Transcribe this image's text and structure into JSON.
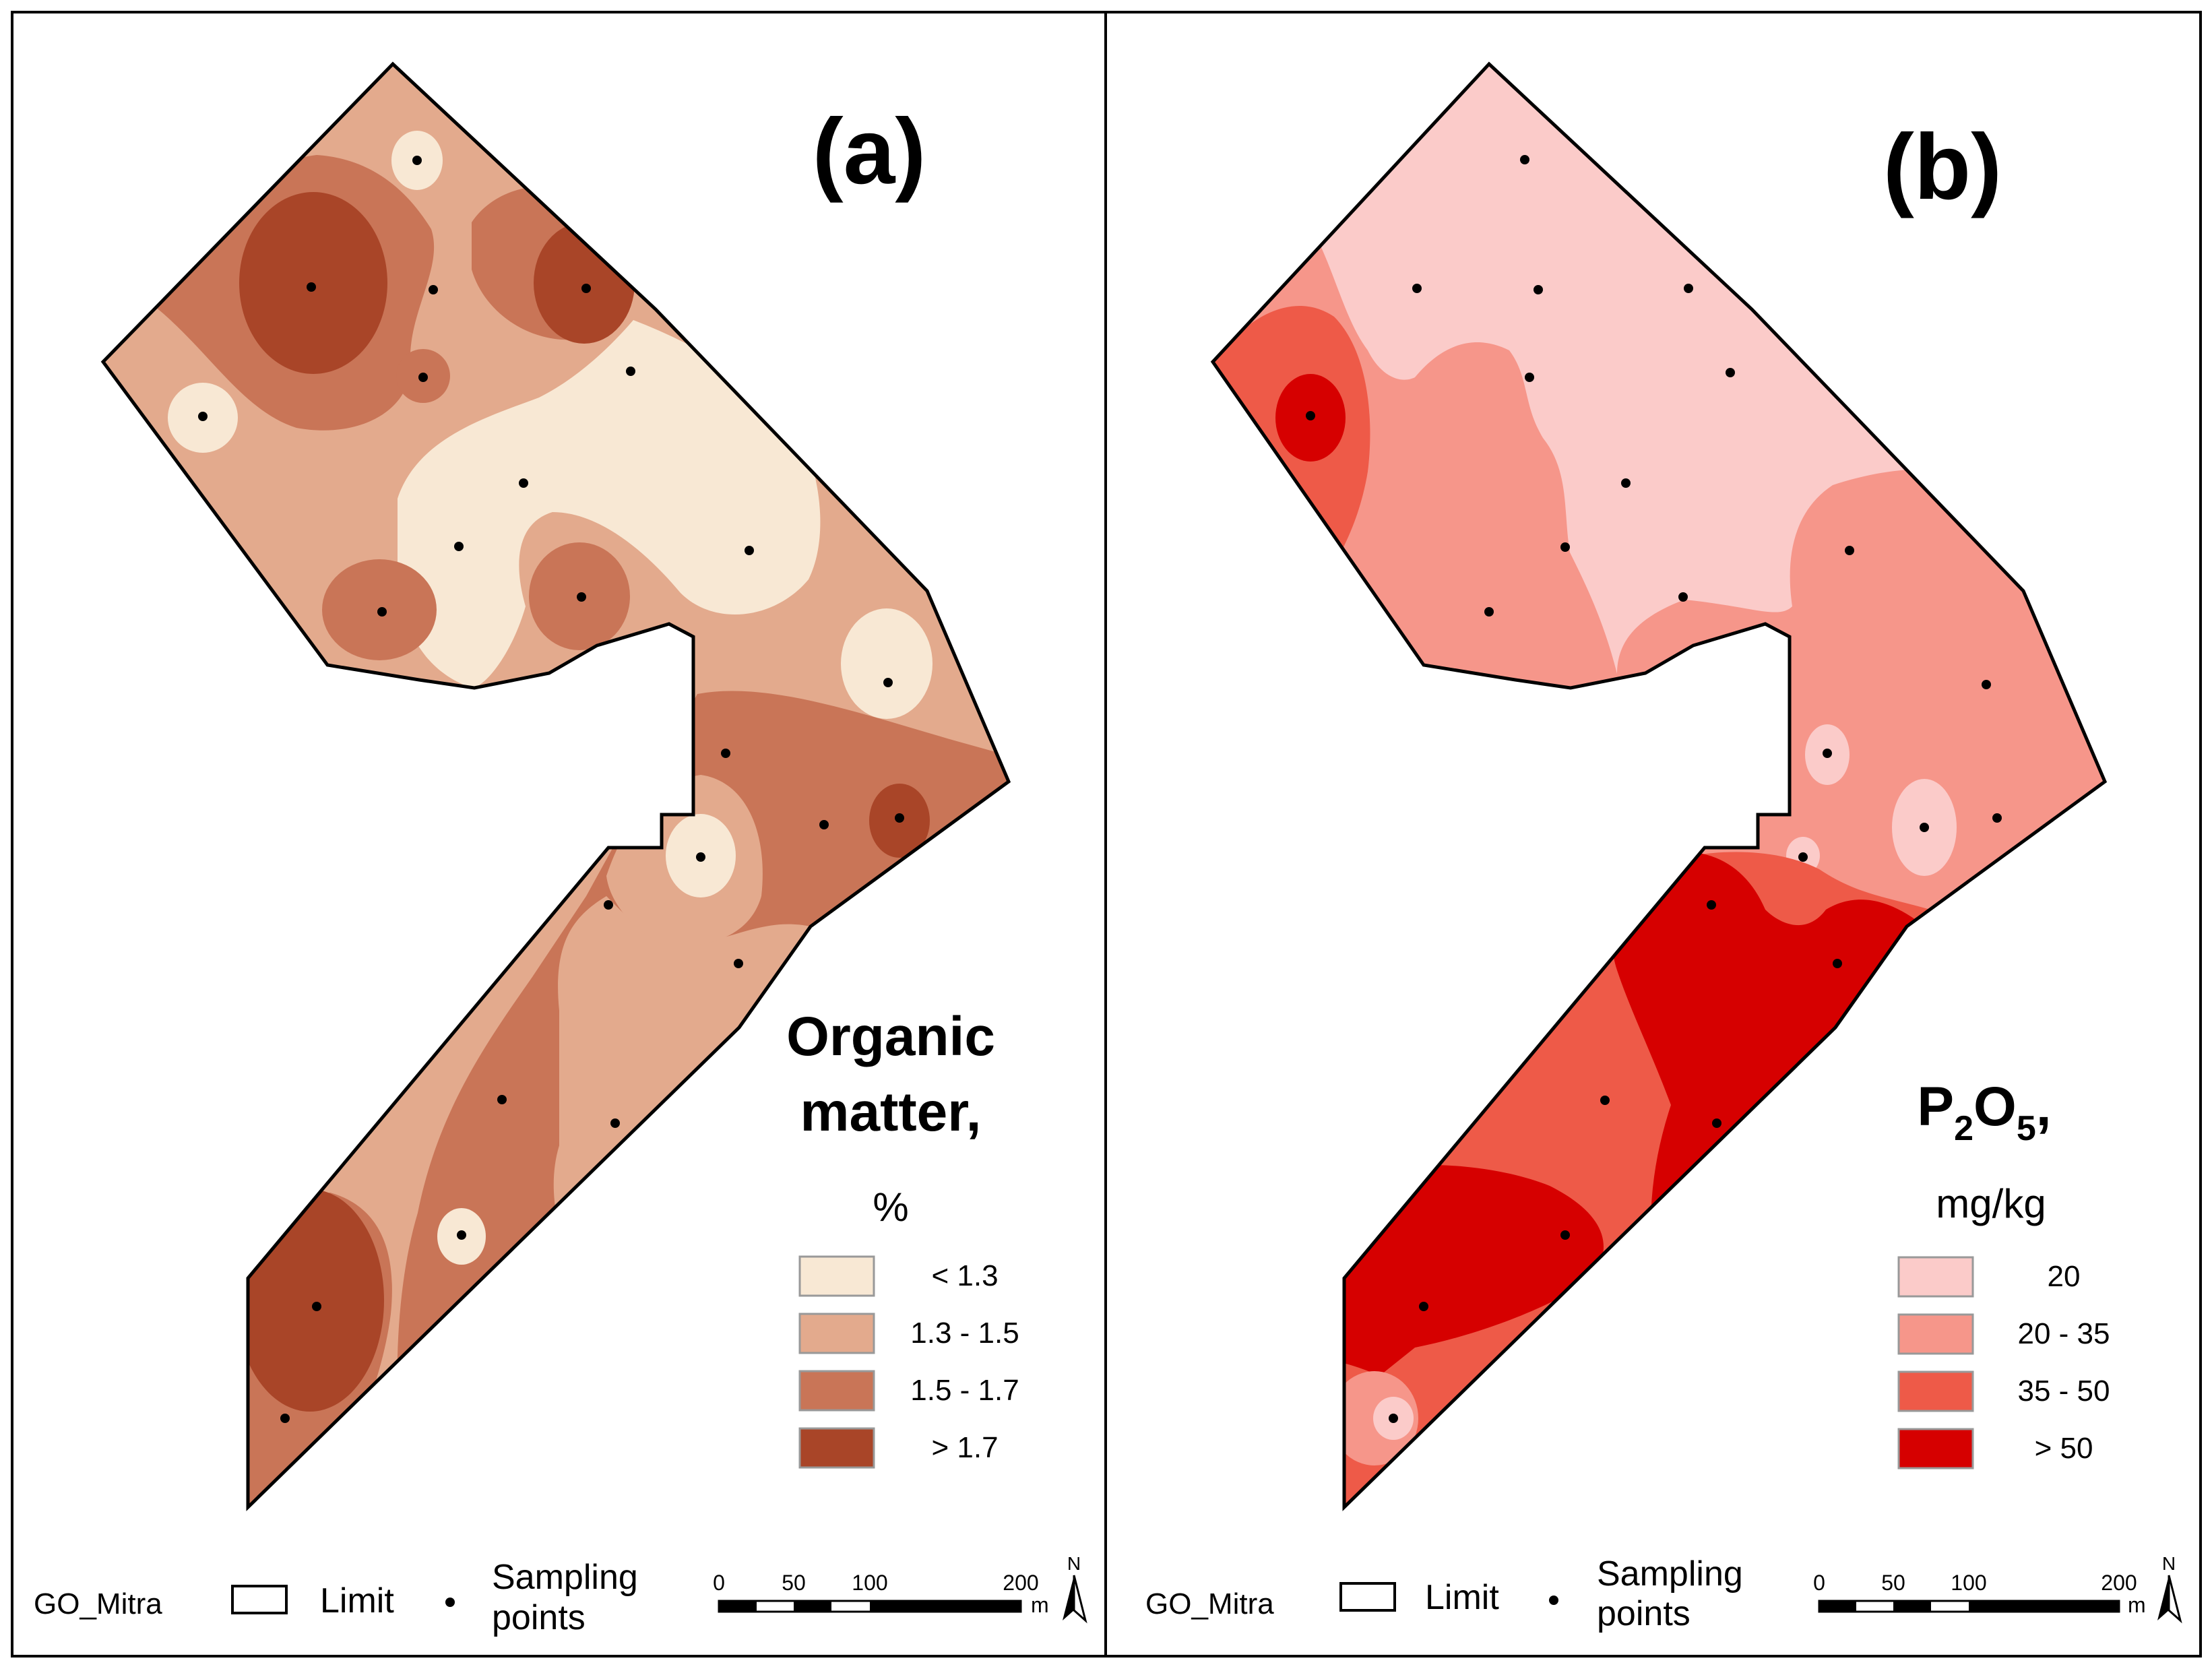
{
  "panels": [
    {
      "label": "(a)",
      "legend_title_line1": "Organic",
      "legend_title_line2": "matter,",
      "legend_unit": "%",
      "classes": [
        {
          "label": "< 1.3",
          "color": "#f8e8d4"
        },
        {
          "label": "1.3 - 1.5",
          "color": "#e3aa8d"
        },
        {
          "label": "1.5 - 1.7",
          "color": "#c97557"
        },
        {
          "label": "> 1.7",
          "color": "#a94528"
        }
      ],
      "footer": {
        "name": "GO_Mitra",
        "limit_label": "Limit",
        "points_label_line1": "Sampling",
        "points_label_line2": "points",
        "scale_ticks": [
          "0",
          "50",
          "100",
          "200"
        ],
        "scale_unit": "m",
        "north": "N"
      }
    },
    {
      "label": "(b)",
      "legend_title_main": "P",
      "legend_title_sub1": "2",
      "legend_title_mid": "O",
      "legend_title_sub2": "5",
      "legend_title_end": ",",
      "legend_unit": "mg/kg",
      "classes": [
        {
          "label": "20",
          "color": "#fbcbc9"
        },
        {
          "label": "20 - 35",
          "color": "#f6968a"
        },
        {
          "label": "35 - 50",
          "color": "#ee5a48"
        },
        {
          "label": "> 50",
          "color": "#d60000"
        }
      ],
      "footer": {
        "name": "GO_Mitra",
        "limit_label": "Limit",
        "points_label_line1": "Sampling",
        "points_label_line2": "points",
        "scale_ticks": [
          "0",
          "50",
          "100",
          "200"
        ],
        "scale_unit": "m",
        "north": "N"
      }
    }
  ]
}
